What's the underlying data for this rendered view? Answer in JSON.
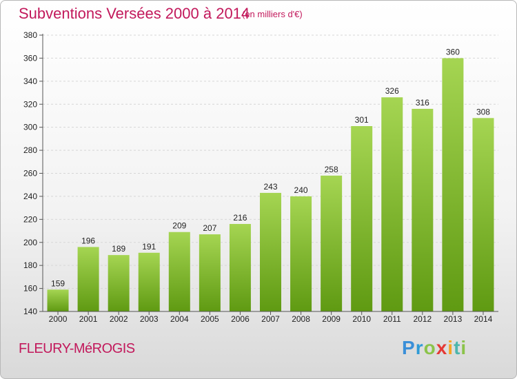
{
  "header": {
    "title": "Subventions Versées 2000 à 2014",
    "subtitle": "(en milliers d'€)"
  },
  "footer": {
    "commune": "FLEURY-MéROGIS",
    "logo_text": "Proxiti",
    "logo_letters": [
      "P",
      "r",
      "o",
      "x",
      "i",
      "t",
      "i"
    ]
  },
  "colors": {
    "accent": "#c2185b",
    "bar_top": "#a5d552",
    "bar_bottom": "#5f9a12"
  },
  "chart_data": {
    "type": "bar",
    "title": "Subventions Versées 2000 à 2014",
    "subtitle": "(en milliers d'€)",
    "categories": [
      "2000",
      "2001",
      "2002",
      "2003",
      "2004",
      "2005",
      "2006",
      "2007",
      "2008",
      "2009",
      "2010",
      "2011",
      "2012",
      "2013",
      "2014"
    ],
    "values": [
      159,
      196,
      189,
      191,
      209,
      207,
      216,
      243,
      240,
      258,
      301,
      326,
      316,
      360,
      308
    ],
    "ylim": [
      140,
      380
    ],
    "yticks": [
      140,
      160,
      180,
      200,
      220,
      240,
      260,
      280,
      300,
      320,
      340,
      360,
      380
    ],
    "grid": true
  }
}
